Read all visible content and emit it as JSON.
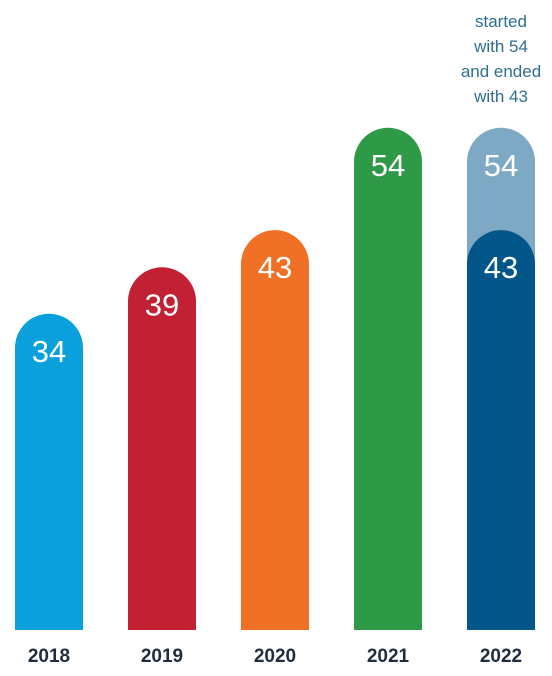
{
  "chart_data": {
    "type": "bar",
    "title": "",
    "xlabel": "",
    "ylabel": "",
    "categories": [
      "2018",
      "2019",
      "2020",
      "2021",
      "2022"
    ],
    "values": [
      34,
      39,
      43,
      54,
      43
    ],
    "value_labels": [
      "34",
      "39",
      "43",
      "54",
      "43"
    ],
    "colors": [
      "#0aa0dc",
      "#c22033",
      "#f07026",
      "#2e9a48",
      "#03568a"
    ],
    "overlay": {
      "category": "2022",
      "value": 54,
      "value_label": "54",
      "color": "#7ea9c5",
      "annotation": [
        "started",
        "with 54",
        "and ended",
        "with 43"
      ]
    },
    "ylim": [
      0,
      54
    ],
    "grid": false,
    "legend": "none"
  }
}
